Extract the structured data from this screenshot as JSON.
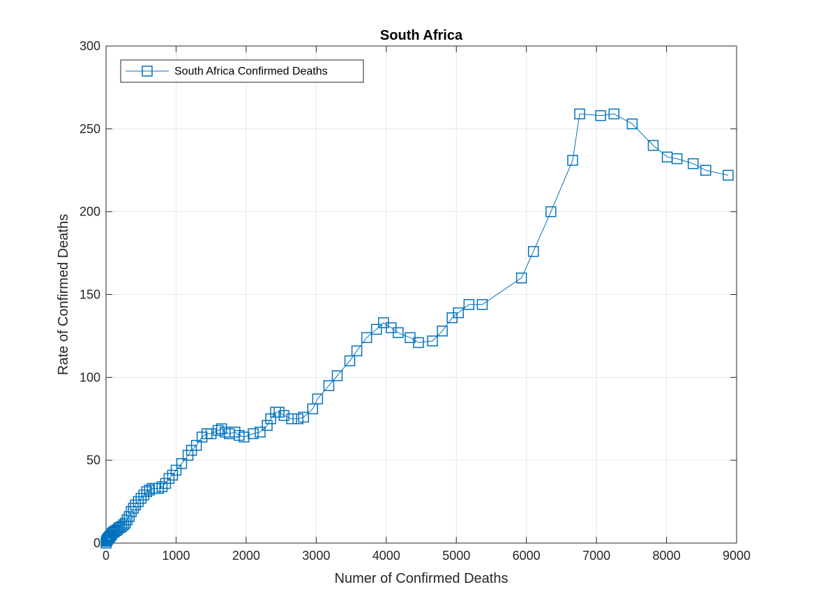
{
  "chart_data": {
    "type": "line",
    "title": "South Africa",
    "xlabel": "Numer of Confirmed Deaths",
    "ylabel": "Rate of Confirmed Deaths",
    "xlim": [
      0,
      9000
    ],
    "ylim": [
      0,
      300
    ],
    "xticks": [
      0,
      1000,
      2000,
      3000,
      4000,
      5000,
      6000,
      7000,
      8000,
      9000
    ],
    "yticks": [
      0,
      50,
      100,
      150,
      200,
      250,
      300
    ],
    "xtick_labels": [
      "0",
      "1000",
      "2000",
      "3000",
      "4000",
      "5000",
      "6000",
      "7000",
      "8000",
      "9000"
    ],
    "ytick_labels": [
      "0",
      "50",
      "100",
      "150",
      "200",
      "250",
      "300"
    ],
    "grid": true,
    "legend_position": "top-left",
    "marker": "square",
    "colors": {
      "series": "#0072BD",
      "grid": "#e6e6e6",
      "axis": "#262626"
    },
    "series": [
      {
        "name": "South Africa Confirmed Deaths",
        "x": [
          0,
          5,
          10,
          18,
          25,
          35,
          45,
          55,
          65,
          75,
          90,
          105,
          120,
          140,
          160,
          180,
          200,
          225,
          250,
          275,
          300,
          330,
          360,
          390,
          420,
          460,
          500,
          540,
          580,
          620,
          660,
          700,
          750,
          800,
          850,
          900,
          950,
          1000,
          1080,
          1170,
          1220,
          1290,
          1370,
          1440,
          1500,
          1600,
          1650,
          1700,
          1760,
          1840,
          1900,
          1970,
          2100,
          2200,
          2300,
          2350,
          2420,
          2470,
          2540,
          2650,
          2740,
          2820,
          2950,
          3020,
          3180,
          3300,
          3480,
          3580,
          3720,
          3860,
          3960,
          4070,
          4170,
          4340,
          4460,
          4660,
          4800,
          4940,
          5030,
          5180,
          5370,
          5930,
          6100,
          6350,
          6660,
          6760,
          7060,
          7250,
          7510,
          7810,
          8010,
          8150,
          8380,
          8560,
          8880
        ],
        "y": [
          0,
          1,
          1.5,
          2,
          2.5,
          3,
          3.5,
          4,
          4.5,
          5,
          6,
          6.5,
          7,
          7.5,
          8,
          9,
          9.5,
          10,
          11,
          12,
          14,
          16,
          19,
          21,
          23,
          25,
          27,
          29,
          31,
          32,
          33,
          33,
          33,
          34,
          36,
          39,
          41,
          44,
          48,
          53,
          56,
          59,
          64,
          66,
          66,
          68,
          69,
          67,
          66,
          67,
          65,
          64,
          66,
          67,
          71,
          75,
          79,
          79,
          77,
          75,
          75,
          76,
          81,
          87,
          95,
          101,
          110,
          116,
          124,
          129,
          133,
          130,
          127,
          124,
          121,
          122,
          128,
          136,
          139,
          144,
          144,
          160,
          176,
          200,
          231,
          259,
          258,
          259,
          253,
          240,
          233,
          232,
          229,
          225,
          222
        ]
      }
    ]
  }
}
